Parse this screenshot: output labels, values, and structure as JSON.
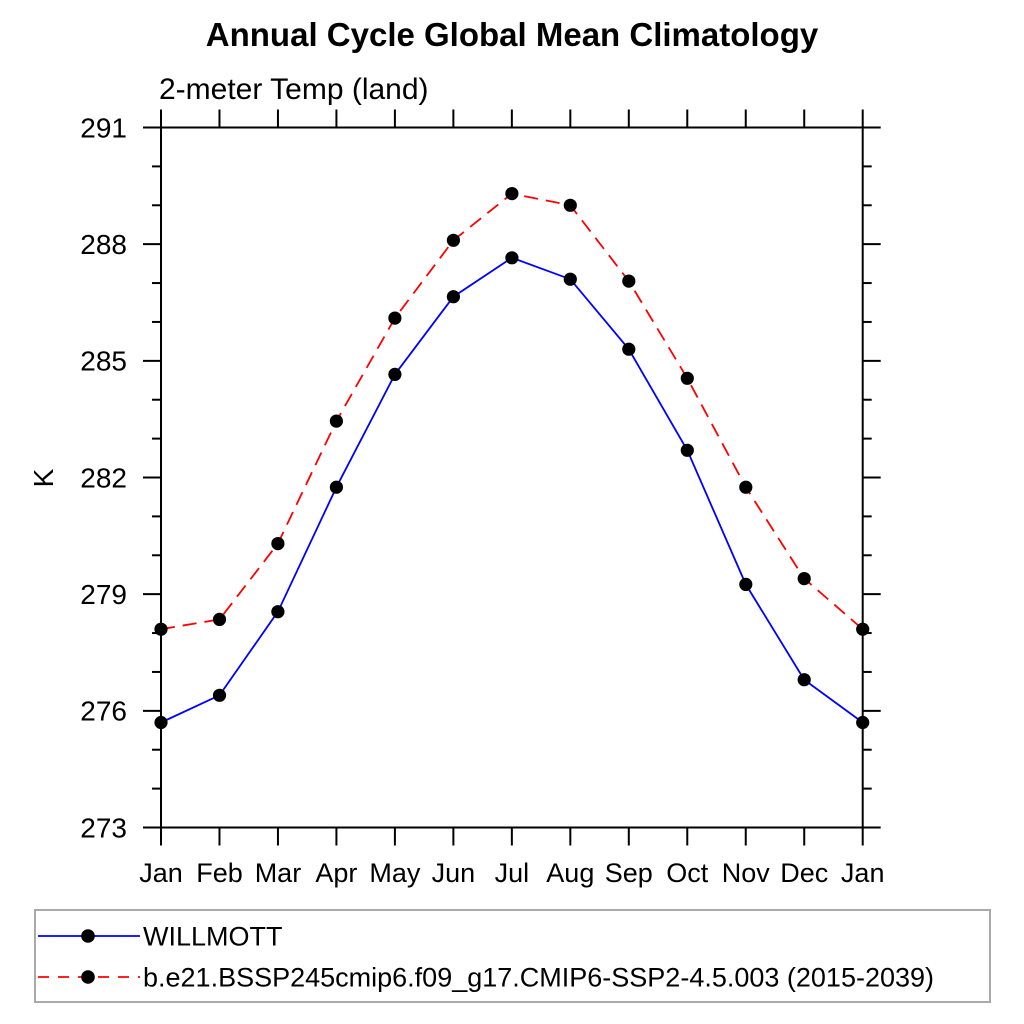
{
  "chart": {
    "title": "Annual Cycle Global Mean Climatology",
    "subtitle": "2-meter Temp (land)",
    "ylabel": "K"
  },
  "chart_data": {
    "type": "line",
    "title": "Annual Cycle Global Mean Climatology",
    "subtitle": "2-meter Temp (land)",
    "xlabel": "",
    "ylabel": "K",
    "categories": [
      "Jan",
      "Feb",
      "Mar",
      "Apr",
      "May",
      "Jun",
      "Jul",
      "Aug",
      "Sep",
      "Oct",
      "Nov",
      "Dec",
      "Jan"
    ],
    "ylim": [
      273,
      291
    ],
    "ytick_step": 3,
    "yminor_step": 1,
    "ytick_labels": [
      "273",
      "276",
      "279",
      "282",
      "285",
      "288",
      "291"
    ],
    "grid": false,
    "legend_position": "bottom-left-box",
    "series": [
      {
        "name": "WILLMOTT",
        "color": "#0000ff",
        "line_style": "solid",
        "marker": "filled-circle",
        "marker_color": "#000000",
        "values": [
          275.7,
          276.4,
          278.55,
          281.75,
          284.65,
          286.65,
          287.65,
          287.1,
          285.3,
          282.7,
          279.25,
          276.8,
          275.7
        ]
      },
      {
        "name": "b.e21.BSSP245cmip6.f09_g17.CMIP6-SSP2-4.5.003 (2015-2039)",
        "color": "#ff0000",
        "line_style": "dashed",
        "marker": "filled-circle",
        "marker_color": "#000000",
        "values": [
          278.1,
          278.35,
          280.3,
          283.45,
          286.1,
          288.1,
          289.3,
          289.0,
          287.05,
          284.55,
          281.75,
          279.4,
          278.1
        ]
      }
    ]
  }
}
